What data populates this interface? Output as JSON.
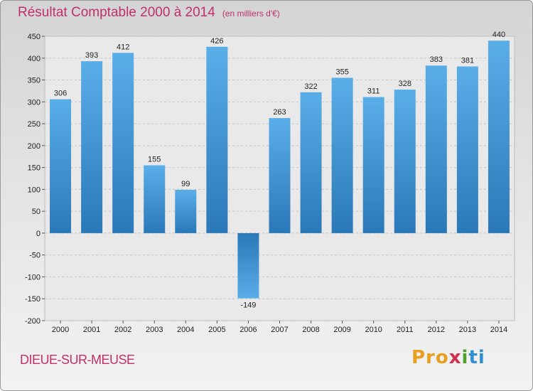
{
  "header": {
    "title": "Résultat Comptable 2000 à 2014",
    "unit": "(en milliers d'€)"
  },
  "footer": {
    "commune": "DIEUE-SUR-MEUSE",
    "logo": [
      "Pro",
      "x",
      "i",
      "ti"
    ]
  },
  "colors": {
    "title": "#c0306a",
    "bar_light": "#5aaee8",
    "bar_dark": "#2a78b8"
  },
  "chart_data": {
    "type": "bar",
    "categories": [
      "2000",
      "2001",
      "2002",
      "2003",
      "2004",
      "2005",
      "2006",
      "2007",
      "2008",
      "2009",
      "2010",
      "2011",
      "2012",
      "2013",
      "2014"
    ],
    "values": [
      306,
      393,
      412,
      155,
      99,
      426,
      -149,
      263,
      322,
      355,
      311,
      328,
      383,
      381,
      440
    ],
    "data_labels": [
      "306",
      "393",
      "412",
      "155",
      "99",
      "426",
      "-149",
      "263",
      "322",
      "355",
      "311",
      "328",
      "383",
      "381",
      "440"
    ],
    "yticks": [
      -200,
      -150,
      -100,
      -50,
      0,
      50,
      100,
      150,
      200,
      250,
      300,
      350,
      400,
      450
    ],
    "ylim": [
      -200,
      450
    ],
    "grid": true
  }
}
